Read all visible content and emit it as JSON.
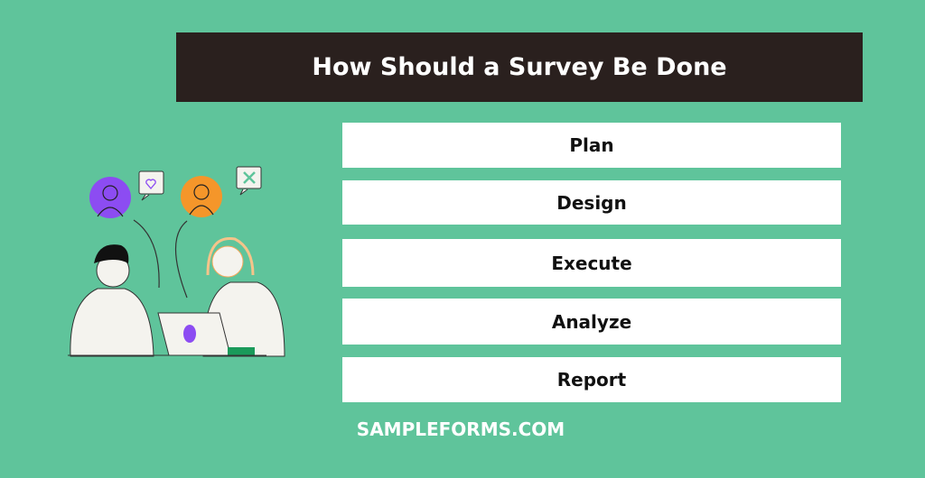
{
  "title": "How Should a Survey Be Done",
  "steps": [
    {
      "label": "Plan"
    },
    {
      "label": "Design"
    },
    {
      "label": "Execute"
    },
    {
      "label": "Analyze"
    },
    {
      "label": "Report"
    }
  ],
  "footer": "SAMPLEFORMS.COM",
  "colors": {
    "background": "#5fc49b",
    "title_bar": "#2a201e",
    "step_box": "#ffffff",
    "avatar_left": "#8c4cf2",
    "avatar_right": "#f5962a"
  }
}
